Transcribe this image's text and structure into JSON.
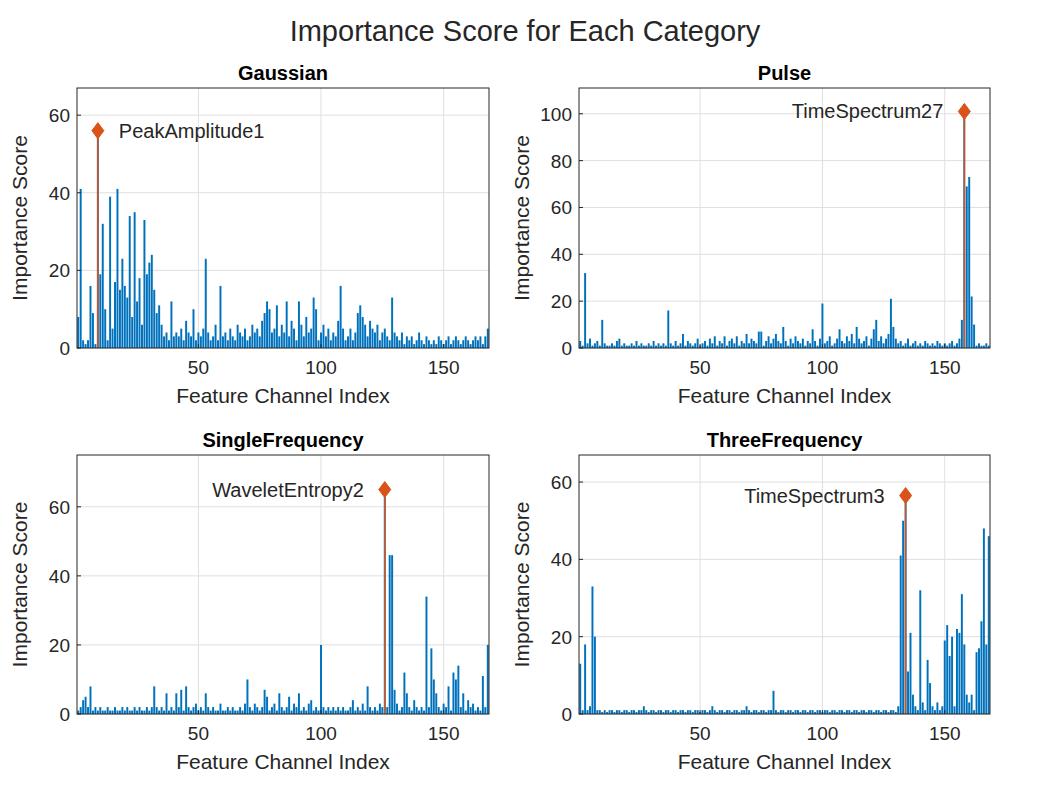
{
  "title": "Importance Score for Each Category",
  "chart_data": [
    {
      "type": "bar",
      "title": "Gaussian",
      "x_label": "Feature Channel Index",
      "y_label": "Importance Score",
      "xlim": [
        0.5,
        168.5
      ],
      "xticks": [
        50,
        100,
        150
      ],
      "ylim": [
        0,
        67
      ],
      "yticks": [
        0,
        20,
        40,
        60
      ],
      "grid": true,
      "color": "#0072bd",
      "x": [
        1,
        2,
        3,
        4,
        5,
        6,
        7,
        8,
        9,
        10,
        11,
        12,
        13,
        14,
        15,
        16,
        17,
        18,
        19,
        20,
        21,
        22,
        23,
        24,
        25,
        26,
        27,
        28,
        29,
        30,
        31,
        32,
        33,
        34,
        35,
        36,
        37,
        38,
        39,
        40,
        41,
        42,
        43,
        44,
        45,
        46,
        47,
        48,
        49,
        50,
        51,
        52,
        53,
        54,
        55,
        56,
        57,
        58,
        59,
        60,
        61,
        62,
        63,
        64,
        65,
        66,
        67,
        68,
        69,
        70,
        71,
        72,
        73,
        74,
        75,
        76,
        77,
        78,
        79,
        80,
        81,
        82,
        83,
        84,
        85,
        86,
        87,
        88,
        89,
        90,
        91,
        92,
        93,
        94,
        95,
        96,
        97,
        98,
        99,
        100,
        101,
        102,
        103,
        104,
        105,
        106,
        107,
        108,
        109,
        110,
        111,
        112,
        113,
        114,
        115,
        116,
        117,
        118,
        119,
        120,
        121,
        122,
        123,
        124,
        125,
        126,
        127,
        128,
        129,
        130,
        131,
        132,
        133,
        134,
        135,
        136,
        137,
        138,
        139,
        140,
        141,
        142,
        143,
        144,
        145,
        146,
        147,
        148,
        149,
        150,
        151,
        152,
        153,
        154,
        155,
        156,
        157,
        158,
        159,
        160,
        161,
        162,
        163,
        164,
        165,
        166,
        167,
        168
      ],
      "values": [
        8,
        41,
        2,
        1,
        2,
        16,
        9,
        1,
        56,
        19,
        32,
        10,
        2,
        39,
        5,
        17,
        41,
        15,
        23,
        16,
        13,
        34,
        8,
        35,
        12,
        18,
        6,
        33,
        19,
        22,
        24,
        15,
        9,
        11,
        6,
        3,
        4,
        2,
        12,
        3,
        4,
        3,
        5,
        2,
        7,
        4,
        3,
        10,
        2,
        4,
        3,
        5,
        23,
        4,
        2,
        3,
        6,
        2,
        16,
        3,
        4,
        2,
        5,
        3,
        2,
        6,
        4,
        3,
        5,
        2,
        3,
        6,
        4,
        5,
        3,
        7,
        9,
        12,
        10,
        4,
        5,
        11,
        3,
        6,
        4,
        12,
        3,
        7,
        5,
        2,
        12,
        6,
        3,
        8,
        4,
        5,
        13,
        10,
        2,
        4,
        6,
        3,
        5,
        2,
        4,
        3,
        7,
        16,
        5,
        2,
        3,
        5,
        2,
        4,
        9,
        11,
        8,
        6,
        3,
        7,
        5,
        4,
        6,
        2,
        4,
        5,
        3,
        2,
        13,
        4,
        3,
        2,
        4,
        1,
        3,
        2,
        3,
        1,
        2,
        4,
        2,
        1,
        3,
        2,
        1,
        2,
        1,
        3,
        2,
        1,
        2,
        3,
        1,
        2,
        3,
        2,
        1,
        2,
        3,
        2,
        1,
        2,
        3,
        2,
        3,
        1,
        3,
        5
      ],
      "annotation": {
        "x": 9,
        "label": "PeakAmplitude1",
        "color": "#d95319",
        "marker": "diamond"
      }
    },
    {
      "type": "bar",
      "title": "Pulse",
      "x_label": "Feature Channel Index",
      "y_label": "Importance Score",
      "xlim": [
        0.5,
        168.5
      ],
      "xticks": [
        50,
        100,
        150
      ],
      "ylim": [
        0,
        111
      ],
      "yticks": [
        0,
        20,
        40,
        60,
        80,
        100
      ],
      "grid": true,
      "color": "#0072bd",
      "x": [
        1,
        2,
        3,
        4,
        5,
        6,
        7,
        8,
        9,
        10,
        11,
        12,
        13,
        14,
        15,
        16,
        17,
        18,
        19,
        20,
        21,
        22,
        23,
        24,
        25,
        26,
        27,
        28,
        29,
        30,
        31,
        32,
        33,
        34,
        35,
        36,
        37,
        38,
        39,
        40,
        41,
        42,
        43,
        44,
        45,
        46,
        47,
        48,
        49,
        50,
        51,
        52,
        53,
        54,
        55,
        56,
        57,
        58,
        59,
        60,
        61,
        62,
        63,
        64,
        65,
        66,
        67,
        68,
        69,
        70,
        71,
        72,
        73,
        74,
        75,
        76,
        77,
        78,
        79,
        80,
        81,
        82,
        83,
        84,
        85,
        86,
        87,
        88,
        89,
        90,
        91,
        92,
        93,
        94,
        95,
        96,
        97,
        98,
        99,
        100,
        101,
        102,
        103,
        104,
        105,
        106,
        107,
        108,
        109,
        110,
        111,
        112,
        113,
        114,
        115,
        116,
        117,
        118,
        119,
        120,
        121,
        122,
        123,
        124,
        125,
        126,
        127,
        128,
        129,
        130,
        131,
        132,
        133,
        134,
        135,
        136,
        137,
        138,
        139,
        140,
        141,
        142,
        143,
        144,
        145,
        146,
        147,
        148,
        149,
        150,
        151,
        152,
        153,
        154,
        155,
        156,
        157,
        158,
        159,
        160,
        161,
        162,
        163,
        164,
        165,
        166,
        167,
        168
      ],
      "values": [
        3,
        1,
        32,
        2,
        4,
        1,
        2,
        3,
        1,
        12,
        2,
        1,
        1,
        2,
        1,
        3,
        4,
        1,
        2,
        1,
        1,
        2,
        1,
        3,
        1,
        2,
        1,
        1,
        2,
        1,
        3,
        1,
        2,
        1,
        2,
        1,
        16,
        2,
        1,
        3,
        1,
        2,
        6,
        1,
        3,
        2,
        1,
        2,
        4,
        1,
        2,
        3,
        1,
        4,
        2,
        5,
        1,
        3,
        2,
        5,
        1,
        3,
        4,
        2,
        5,
        1,
        3,
        2,
        6,
        2,
        4,
        3,
        2,
        7,
        7,
        1,
        3,
        5,
        2,
        4,
        6,
        3,
        2,
        9,
        3,
        1,
        4,
        2,
        5,
        3,
        2,
        4,
        1,
        3,
        2,
        8,
        3,
        1,
        4,
        19,
        2,
        3,
        5,
        1,
        2,
        4,
        8,
        3,
        2,
        5,
        3,
        6,
        2,
        9,
        4,
        2,
        3,
        5,
        1,
        4,
        8,
        12,
        3,
        5,
        2,
        4,
        6,
        21,
        9,
        4,
        2,
        3,
        1,
        2,
        4,
        1,
        2,
        3,
        1,
        2,
        1,
        3,
        2,
        1,
        2,
        1,
        3,
        2,
        1,
        2,
        1,
        2,
        3,
        1,
        2,
        4,
        12,
        101,
        69,
        73,
        22,
        10,
        1,
        2,
        1,
        1,
        2,
        1
      ],
      "annotation": {
        "x": 158,
        "label": "TimeSpectrum27",
        "color": "#d95319",
        "marker": "diamond"
      }
    },
    {
      "type": "bar",
      "title": "SingleFrequency",
      "x_label": "Feature Channel Index",
      "y_label": "Importance Score",
      "xlim": [
        0.5,
        168.5
      ],
      "xticks": [
        50,
        100,
        150
      ],
      "ylim": [
        0,
        75
      ],
      "yticks": [
        0,
        20,
        40,
        60
      ],
      "grid": true,
      "color": "#0072bd",
      "x": [
        1,
        2,
        3,
        4,
        5,
        6,
        7,
        8,
        9,
        10,
        11,
        12,
        13,
        14,
        15,
        16,
        17,
        18,
        19,
        20,
        21,
        22,
        23,
        24,
        25,
        26,
        27,
        28,
        29,
        30,
        31,
        32,
        33,
        34,
        35,
        36,
        37,
        38,
        39,
        40,
        41,
        42,
        43,
        44,
        45,
        46,
        47,
        48,
        49,
        50,
        51,
        52,
        53,
        54,
        55,
        56,
        57,
        58,
        59,
        60,
        61,
        62,
        63,
        64,
        65,
        66,
        67,
        68,
        69,
        70,
        71,
        72,
        73,
        74,
        75,
        76,
        77,
        78,
        79,
        80,
        81,
        82,
        83,
        84,
        85,
        86,
        87,
        88,
        89,
        90,
        91,
        92,
        93,
        94,
        95,
        96,
        97,
        98,
        99,
        100,
        101,
        102,
        103,
        104,
        105,
        106,
        107,
        108,
        109,
        110,
        111,
        112,
        113,
        114,
        115,
        116,
        117,
        118,
        119,
        120,
        121,
        122,
        123,
        124,
        125,
        126,
        127,
        128,
        129,
        130,
        131,
        132,
        133,
        134,
        135,
        136,
        137,
        138,
        139,
        140,
        141,
        142,
        143,
        144,
        145,
        146,
        147,
        148,
        149,
        150,
        151,
        152,
        153,
        154,
        155,
        156,
        157,
        158,
        159,
        160,
        161,
        162,
        163,
        164,
        165,
        166,
        167,
        168
      ],
      "values": [
        1,
        2,
        4,
        5,
        2,
        8,
        1,
        2,
        1,
        2,
        1,
        1,
        2,
        1,
        1,
        2,
        1,
        1,
        2,
        1,
        2,
        1,
        1,
        2,
        1,
        2,
        1,
        1,
        2,
        1,
        2,
        8,
        2,
        1,
        2,
        1,
        6,
        1,
        2,
        1,
        6,
        2,
        7,
        1,
        8,
        2,
        1,
        2,
        3,
        1,
        2,
        1,
        6,
        2,
        1,
        2,
        1,
        1,
        3,
        1,
        1,
        2,
        1,
        2,
        1,
        1,
        2,
        1,
        3,
        10,
        2,
        1,
        3,
        2,
        1,
        2,
        7,
        5,
        1,
        2,
        3,
        1,
        6,
        2,
        1,
        2,
        5,
        1,
        3,
        2,
        6,
        1,
        2,
        1,
        3,
        4,
        1,
        2,
        1,
        20,
        2,
        1,
        2,
        1,
        2,
        1,
        2,
        1,
        2,
        1,
        1,
        2,
        4,
        1,
        2,
        1,
        3,
        1,
        8,
        2,
        1,
        2,
        1,
        3,
        2,
        65,
        2,
        46,
        46,
        7,
        3,
        1,
        2,
        12,
        6,
        2,
        1,
        4,
        2,
        1,
        2,
        1,
        34,
        2,
        19,
        10,
        6,
        2,
        1,
        3,
        2,
        8,
        1,
        12,
        10,
        14,
        2,
        6,
        1,
        4,
        2,
        3,
        1,
        2,
        1,
        11,
        2,
        20
      ],
      "annotation": {
        "x": 126,
        "label": "WaveletEntropy2",
        "color": "#d95319",
        "marker": "diamond"
      }
    },
    {
      "type": "bar",
      "title": "ThreeFrequency",
      "x_label": "Feature Channel Index",
      "y_label": "Importance Score",
      "xlim": [
        0.5,
        168.5
      ],
      "xticks": [
        50,
        100,
        150
      ],
      "ylim": [
        0,
        67
      ],
      "yticks": [
        0,
        20,
        40,
        60
      ],
      "grid": true,
      "color": "#0072bd",
      "x": [
        1,
        2,
        3,
        4,
        5,
        6,
        7,
        8,
        9,
        10,
        11,
        12,
        13,
        14,
        15,
        16,
        17,
        18,
        19,
        20,
        21,
        22,
        23,
        24,
        25,
        26,
        27,
        28,
        29,
        30,
        31,
        32,
        33,
        34,
        35,
        36,
        37,
        38,
        39,
        40,
        41,
        42,
        43,
        44,
        45,
        46,
        47,
        48,
        49,
        50,
        51,
        52,
        53,
        54,
        55,
        56,
        57,
        58,
        59,
        60,
        61,
        62,
        63,
        64,
        65,
        66,
        67,
        68,
        69,
        70,
        71,
        72,
        73,
        74,
        75,
        76,
        77,
        78,
        79,
        80,
        81,
        82,
        83,
        84,
        85,
        86,
        87,
        88,
        89,
        90,
        91,
        92,
        93,
        94,
        95,
        96,
        97,
        98,
        99,
        100,
        101,
        102,
        103,
        104,
        105,
        106,
        107,
        108,
        109,
        110,
        111,
        112,
        113,
        114,
        115,
        116,
        117,
        118,
        119,
        120,
        121,
        122,
        123,
        124,
        125,
        126,
        127,
        128,
        129,
        130,
        131,
        132,
        133,
        134,
        135,
        136,
        137,
        138,
        139,
        140,
        141,
        142,
        143,
        144,
        145,
        146,
        147,
        148,
        149,
        150,
        151,
        152,
        153,
        154,
        155,
        156,
        157,
        158,
        159,
        160,
        161,
        162,
        163,
        164,
        165,
        166,
        167,
        168
      ],
      "values": [
        13,
        1,
        18,
        1,
        2,
        33,
        20,
        1,
        1,
        0.5,
        1,
        0.5,
        1,
        1,
        0.5,
        1,
        1,
        0.5,
        1,
        1,
        0.5,
        1,
        1,
        0.5,
        1,
        1,
        2,
        1,
        0.5,
        1,
        1,
        0.5,
        1,
        1,
        0.5,
        1,
        1,
        0.5,
        1,
        1,
        0.5,
        1,
        1,
        0.5,
        1,
        1,
        0.5,
        1,
        1,
        0.5,
        1,
        1,
        0.5,
        1,
        2,
        1,
        0.5,
        1,
        1,
        0.5,
        1,
        1,
        0.5,
        1,
        1,
        0.5,
        1,
        1,
        2,
        1,
        0.5,
        1,
        1,
        0.5,
        1,
        1,
        0.5,
        1,
        1,
        6,
        1,
        0.5,
        1,
        1,
        0.5,
        1,
        1,
        0.5,
        1,
        1,
        0.5,
        1,
        1,
        0.5,
        1,
        1,
        0.5,
        1,
        1,
        0.5,
        1,
        1,
        0.5,
        1,
        1,
        0.5,
        1,
        1,
        0.5,
        1,
        1,
        0.5,
        1,
        1,
        0.5,
        1,
        1,
        0.5,
        1,
        1,
        0.5,
        1,
        1,
        0.5,
        1,
        1,
        0.5,
        1,
        1,
        0.5,
        2,
        41,
        50,
        56.5,
        11,
        21,
        5,
        2,
        1,
        32,
        3,
        1,
        14,
        8,
        2,
        1,
        3,
        1,
        2,
        19,
        23,
        15,
        20,
        2,
        22,
        21,
        31,
        18,
        5,
        3,
        5,
        1,
        16,
        17,
        24,
        48,
        18,
        46
      ],
      "annotation": {
        "x": 134,
        "label": "TimeSpectrum3",
        "color": "#d95319",
        "marker": "diamond"
      }
    }
  ]
}
